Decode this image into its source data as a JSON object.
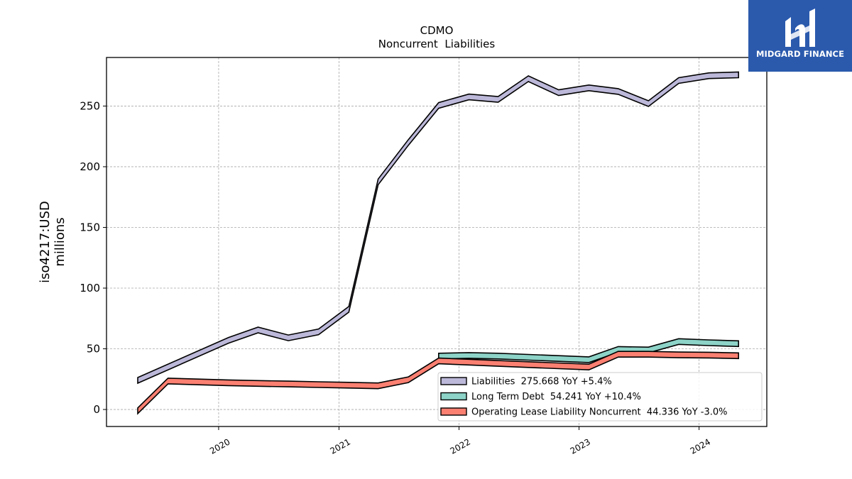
{
  "brand": {
    "name": "MIDGARD FINANCE",
    "logo_icon": "midgard-finance-logo-icon",
    "background": "#2b5aad"
  },
  "chart_data": {
    "type": "area",
    "title": "CDMO",
    "subtitle": "Noncurrent  Liabilities",
    "ylabel_line1": "iso4217:USD",
    "ylabel_line2": "millions",
    "xlabel": "",
    "x_ticks": [
      "2020",
      "2021",
      "2022",
      "2023",
      "2024"
    ],
    "y_ticks": [
      0,
      50,
      100,
      150,
      200,
      250
    ],
    "xlim": [
      "2019-01-25",
      "2024-07-25"
    ],
    "ylim": [
      -14,
      290
    ],
    "grid": true,
    "legend_position": "lower-right",
    "series": [
      {
        "name": "Liabilities",
        "legend_label": "Liabilities  275.668 YoY +5.4%",
        "color": "#bcb8d9",
        "x": [
          "2019-04-30",
          "2020-01-31",
          "2020-04-30",
          "2020-07-31",
          "2020-10-31",
          "2021-01-31",
          "2021-04-30",
          "2021-07-31",
          "2021-10-31",
          "2022-01-31",
          "2022-04-30",
          "2022-07-31",
          "2022-10-31",
          "2023-01-31",
          "2023-04-30",
          "2023-07-31",
          "2023-10-31",
          "2024-01-31",
          "2024-04-30"
        ],
        "values": [
          24,
          57,
          65.5,
          59,
          64,
          82.5,
          187.5,
          220,
          250.5,
          257.5,
          255.5,
          272.5,
          261,
          265,
          262,
          252,
          271,
          275,
          275.7
        ]
      },
      {
        "name": "Long Term Debt",
        "legend_label": "Long Term Debt  54.241 YoY +10.4%",
        "color": "#8dd3c7",
        "x": [
          "2021-10-31",
          "2022-01-31",
          "2022-04-30",
          "2022-07-31",
          "2022-10-31",
          "2023-01-31",
          "2023-04-30",
          "2023-07-31",
          "2023-10-31",
          "2024-01-31",
          "2024-04-30"
        ],
        "values": [
          44,
          44.5,
          44,
          43,
          42,
          41,
          49.5,
          49,
          56,
          55,
          54.2
        ]
      },
      {
        "name": "Operating Lease Liability Noncurrent",
        "legend_label": "Operating Lease Liability Noncurrent  44.336 YoY -3.0%",
        "color": "#fb8072",
        "x": [
          "2019-04-30",
          "2019-07-31",
          "2020-01-31",
          "2020-04-30",
          "2020-07-31",
          "2020-10-31",
          "2021-01-31",
          "2021-04-30",
          "2021-07-31",
          "2021-10-31",
          "2022-01-31",
          "2022-04-30",
          "2022-07-31",
          "2022-10-31",
          "2023-01-31",
          "2023-04-30",
          "2023-07-31",
          "2023-10-31",
          "2024-01-31",
          "2024-04-30"
        ],
        "values": [
          -1,
          23.5,
          22,
          21.5,
          21,
          20.5,
          20,
          19.5,
          24.5,
          40,
          39,
          38,
          37,
          36,
          35,
          45.5,
          45.5,
          45,
          44.8,
          44.3
        ]
      }
    ]
  }
}
